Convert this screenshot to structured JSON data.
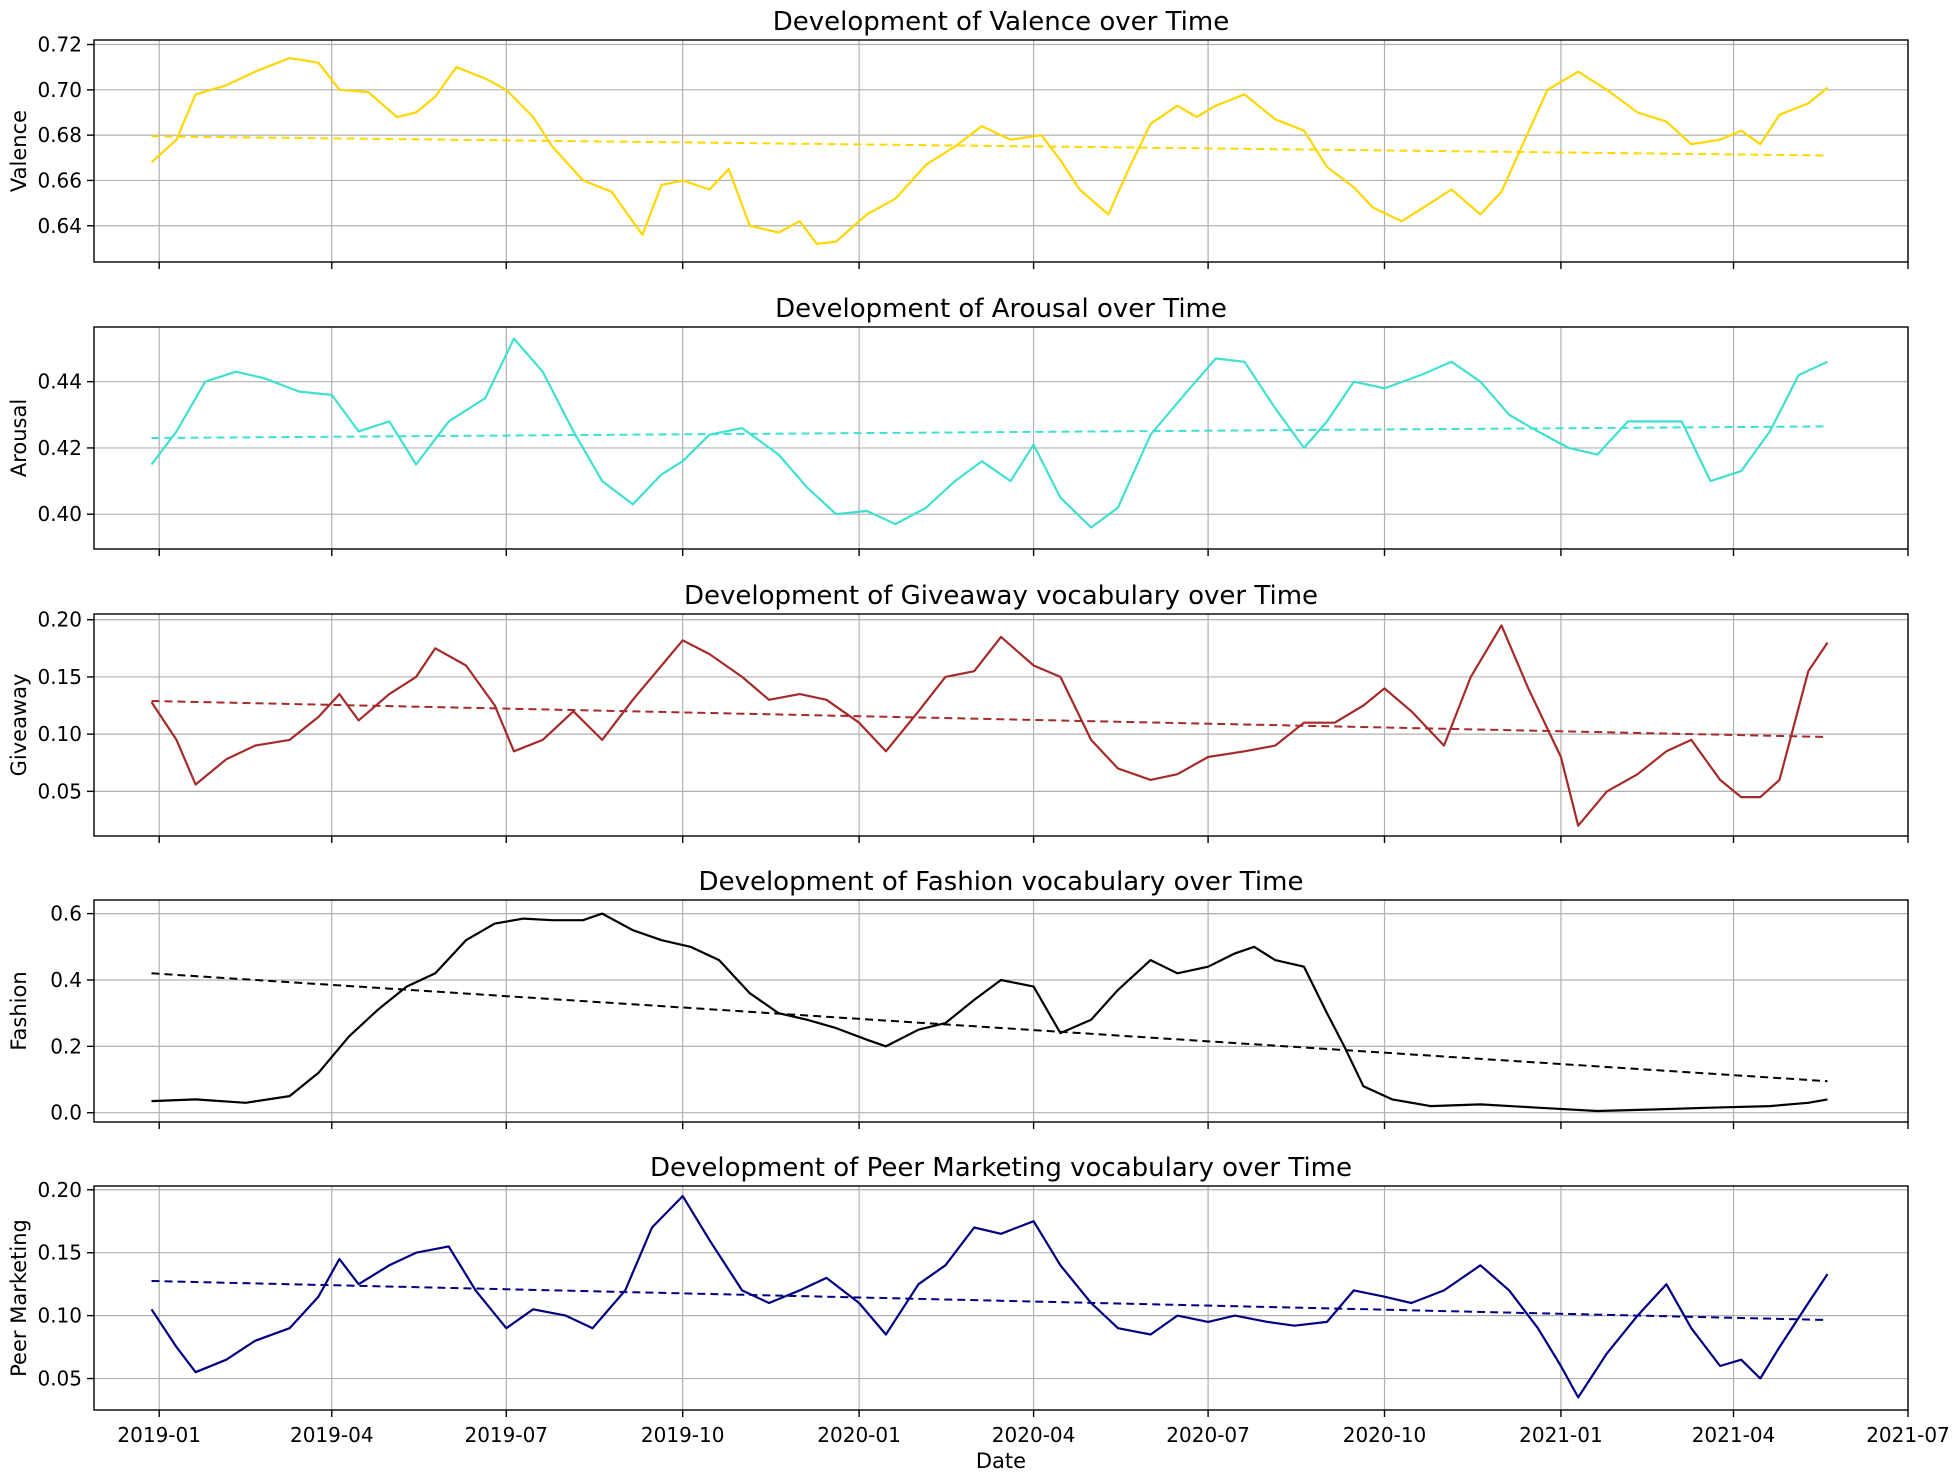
{
  "chart_data": [
    {
      "type": "line",
      "title": "Development of Valence over Time",
      "xlabel": "",
      "ylabel": "Valence",
      "xlim": [
        "2018-11-28",
        "2021-07-01"
      ],
      "ylim": [
        0.624,
        0.722
      ],
      "yticks": [
        0.64,
        0.66,
        0.68,
        0.7,
        0.72
      ],
      "ytick_labels": [
        "0.64",
        "0.66",
        "0.68",
        "0.70",
        "0.72"
      ],
      "xticks": [
        "2019-01-01",
        "2019-04-01",
        "2019-07-01",
        "2019-10-01",
        "2020-01-01",
        "2020-04-01",
        "2020-07-01",
        "2020-10-01",
        "2021-01-01",
        "2021-04-01",
        "2021-07-01"
      ],
      "xtick_labels": [],
      "grid": true,
      "color": "#ffd700",
      "series": [
        {
          "style": "solid",
          "x": [
            "2018-12-28",
            "2019-01-10",
            "2019-01-20",
            "2019-02-05",
            "2019-02-20",
            "2019-03-10",
            "2019-03-25",
            "2019-04-05",
            "2019-04-20",
            "2019-05-05",
            "2019-05-15",
            "2019-05-25",
            "2019-06-05",
            "2019-06-20",
            "2019-07-01",
            "2019-07-15",
            "2019-07-25",
            "2019-08-10",
            "2019-08-25",
            "2019-09-10",
            "2019-09-20",
            "2019-10-01",
            "2019-10-15",
            "2019-10-25",
            "2019-11-05",
            "2019-11-20",
            "2019-12-01",
            "2019-12-10",
            "2019-12-20",
            "2020-01-05",
            "2020-01-20",
            "2020-02-05",
            "2020-02-20",
            "2020-03-05",
            "2020-03-20",
            "2020-04-05",
            "2020-04-15",
            "2020-04-25",
            "2020-05-10",
            "2020-05-20",
            "2020-06-01",
            "2020-06-15",
            "2020-06-25",
            "2020-07-05",
            "2020-07-20",
            "2020-08-05",
            "2020-08-20",
            "2020-09-01",
            "2020-09-15",
            "2020-09-25",
            "2020-10-10",
            "2020-10-25",
            "2020-11-05",
            "2020-11-20",
            "2020-12-01",
            "2020-12-10",
            "2020-12-25",
            "2021-01-10",
            "2021-01-25",
            "2021-02-10",
            "2021-02-25",
            "2021-03-10",
            "2021-03-25",
            "2021-04-05",
            "2021-04-15",
            "2021-04-25",
            "2021-05-10",
            "2021-05-20"
          ],
          "y": [
            0.668,
            0.678,
            0.698,
            0.702,
            0.708,
            0.714,
            0.712,
            0.7,
            0.699,
            0.688,
            0.69,
            0.697,
            0.71,
            0.705,
            0.7,
            0.688,
            0.675,
            0.66,
            0.655,
            0.636,
            0.658,
            0.66,
            0.656,
            0.665,
            0.64,
            0.637,
            0.642,
            0.632,
            0.633,
            0.645,
            0.652,
            0.667,
            0.675,
            0.684,
            0.678,
            0.68,
            0.669,
            0.656,
            0.645,
            0.664,
            0.685,
            0.693,
            0.688,
            0.693,
            0.698,
            0.687,
            0.682,
            0.666,
            0.657,
            0.648,
            0.642,
            0.65,
            0.656,
            0.645,
            0.655,
            0.672,
            0.7,
            0.708,
            0.7,
            0.69,
            0.686,
            0.676,
            0.678,
            0.682,
            0.676,
            0.689,
            0.694,
            0.701
          ]
        },
        {
          "style": "dashed",
          "x": [
            "2018-12-28",
            "2021-05-20"
          ],
          "y": [
            0.6795,
            0.671
          ]
        }
      ]
    },
    {
      "type": "line",
      "title": "Development of Arousal over Time",
      "xlabel": "",
      "ylabel": "Arousal",
      "xlim": [
        "2018-11-28",
        "2021-07-01"
      ],
      "ylim": [
        0.3895,
        0.4565
      ],
      "yticks": [
        0.4,
        0.42,
        0.44
      ],
      "ytick_labels": [
        "0.40",
        "0.42",
        "0.44"
      ],
      "xticks": [
        "2019-01-01",
        "2019-04-01",
        "2019-07-01",
        "2019-10-01",
        "2020-01-01",
        "2020-04-01",
        "2020-07-01",
        "2020-10-01",
        "2021-01-01",
        "2021-04-01",
        "2021-07-01"
      ],
      "xtick_labels": [],
      "grid": true,
      "color": "#40e0d0",
      "series": [
        {
          "style": "solid",
          "x": [
            "2018-12-28",
            "2019-01-10",
            "2019-01-25",
            "2019-02-10",
            "2019-02-25",
            "2019-03-15",
            "2019-04-01",
            "2019-04-15",
            "2019-05-01",
            "2019-05-15",
            "2019-06-01",
            "2019-06-20",
            "2019-07-05",
            "2019-07-20",
            "2019-08-05",
            "2019-08-20",
            "2019-09-05",
            "2019-09-20",
            "2019-10-01",
            "2019-10-15",
            "2019-11-01",
            "2019-11-20",
            "2019-12-05",
            "2019-12-20",
            "2020-01-05",
            "2020-01-20",
            "2020-02-05",
            "2020-02-20",
            "2020-03-05",
            "2020-03-20",
            "2020-04-01",
            "2020-04-15",
            "2020-05-01",
            "2020-05-15",
            "2020-06-01",
            "2020-06-20",
            "2020-07-05",
            "2020-07-20",
            "2020-08-05",
            "2020-08-20",
            "2020-09-01",
            "2020-09-15",
            "2020-10-01",
            "2020-10-20",
            "2020-11-05",
            "2020-11-20",
            "2020-12-05",
            "2020-12-20",
            "2021-01-05",
            "2021-01-20",
            "2021-02-05",
            "2021-02-20",
            "2021-03-05",
            "2021-03-20",
            "2021-04-05",
            "2021-04-20",
            "2021-05-05",
            "2021-05-20"
          ],
          "y": [
            0.415,
            0.425,
            0.44,
            0.443,
            0.441,
            0.437,
            0.436,
            0.425,
            0.428,
            0.415,
            0.428,
            0.435,
            0.453,
            0.443,
            0.425,
            0.41,
            0.403,
            0.412,
            0.416,
            0.424,
            0.426,
            0.418,
            0.408,
            0.4,
            0.401,
            0.397,
            0.402,
            0.41,
            0.416,
            0.41,
            0.421,
            0.405,
            0.396,
            0.402,
            0.424,
            0.437,
            0.447,
            0.446,
            0.432,
            0.42,
            0.428,
            0.44,
            0.438,
            0.442,
            0.446,
            0.44,
            0.43,
            0.425,
            0.42,
            0.418,
            0.428,
            0.428,
            0.428,
            0.41,
            0.413,
            0.425,
            0.442,
            0.446
          ]
        },
        {
          "style": "dashed",
          "x": [
            "2018-12-28",
            "2021-05-20"
          ],
          "y": [
            0.423,
            0.4265
          ]
        }
      ]
    },
    {
      "type": "line",
      "title": "Development of Giveaway vocabulary over Time",
      "xlabel": "",
      "ylabel": "Giveaway",
      "xlim": [
        "2018-11-28",
        "2021-07-01"
      ],
      "ylim": [
        0.011,
        0.205
      ],
      "yticks": [
        0.05,
        0.1,
        0.15,
        0.2
      ],
      "ytick_labels": [
        "0.05",
        "0.10",
        "0.15",
        "0.20"
      ],
      "xticks": [
        "2019-01-01",
        "2019-04-01",
        "2019-07-01",
        "2019-10-01",
        "2020-01-01",
        "2020-04-01",
        "2020-07-01",
        "2020-10-01",
        "2021-01-01",
        "2021-04-01",
        "2021-07-01"
      ],
      "xtick_labels": [],
      "grid": true,
      "color": "#a52a2a",
      "series": [
        {
          "style": "solid",
          "x": [
            "2018-12-28",
            "2019-01-10",
            "2019-01-20",
            "2019-02-05",
            "2019-02-20",
            "2019-03-10",
            "2019-03-25",
            "2019-04-05",
            "2019-04-15",
            "2019-05-01",
            "2019-05-15",
            "2019-05-25",
            "2019-06-10",
            "2019-06-25",
            "2019-07-05",
            "2019-07-20",
            "2019-08-05",
            "2019-08-20",
            "2019-09-05",
            "2019-09-20",
            "2019-10-01",
            "2019-10-15",
            "2019-11-01",
            "2019-11-15",
            "2019-12-01",
            "2019-12-15",
            "2020-01-01",
            "2020-01-15",
            "2020-02-01",
            "2020-02-15",
            "2020-03-01",
            "2020-03-15",
            "2020-04-01",
            "2020-04-15",
            "2020-05-01",
            "2020-05-15",
            "2020-06-01",
            "2020-06-15",
            "2020-07-01",
            "2020-07-20",
            "2020-08-05",
            "2020-08-20",
            "2020-09-05",
            "2020-09-20",
            "2020-10-01",
            "2020-10-15",
            "2020-11-01",
            "2020-11-15",
            "2020-12-01",
            "2020-12-15",
            "2021-01-01",
            "2021-01-10",
            "2021-01-25",
            "2021-02-10",
            "2021-02-25",
            "2021-03-10",
            "2021-03-25",
            "2021-04-05",
            "2021-04-15",
            "2021-04-25",
            "2021-05-10",
            "2021-05-20"
          ],
          "y": [
            0.128,
            0.095,
            0.056,
            0.078,
            0.09,
            0.095,
            0.115,
            0.135,
            0.112,
            0.135,
            0.15,
            0.175,
            0.16,
            0.125,
            0.085,
            0.095,
            0.12,
            0.095,
            0.13,
            0.16,
            0.182,
            0.17,
            0.15,
            0.13,
            0.135,
            0.13,
            0.11,
            0.085,
            0.12,
            0.15,
            0.155,
            0.185,
            0.16,
            0.15,
            0.095,
            0.07,
            0.06,
            0.065,
            0.08,
            0.085,
            0.09,
            0.11,
            0.11,
            0.125,
            0.14,
            0.12,
            0.09,
            0.15,
            0.195,
            0.14,
            0.08,
            0.02,
            0.05,
            0.065,
            0.085,
            0.095,
            0.06,
            0.045,
            0.045,
            0.06,
            0.155,
            0.18
          ]
        },
        {
          "style": "dashed",
          "x": [
            "2018-12-28",
            "2021-05-20"
          ],
          "y": [
            0.129,
            0.0975
          ]
        }
      ]
    },
    {
      "type": "line",
      "title": "Development of Fashion vocabulary over Time",
      "xlabel": "",
      "ylabel": "Fashion",
      "xlim": [
        "2018-11-28",
        "2021-07-01"
      ],
      "ylim": [
        -0.028,
        0.641
      ],
      "yticks": [
        0.0,
        0.2,
        0.4,
        0.6
      ],
      "ytick_labels": [
        "0.0",
        "0.2",
        "0.4",
        "0.6"
      ],
      "xticks": [
        "2019-01-01",
        "2019-04-01",
        "2019-07-01",
        "2019-10-01",
        "2020-01-01",
        "2020-04-01",
        "2020-07-01",
        "2020-10-01",
        "2021-01-01",
        "2021-04-01",
        "2021-07-01"
      ],
      "xtick_labels": [],
      "grid": true,
      "color": "#000000",
      "series": [
        {
          "style": "solid",
          "x": [
            "2018-12-28",
            "2019-01-20",
            "2019-02-15",
            "2019-03-10",
            "2019-03-25",
            "2019-04-10",
            "2019-04-25",
            "2019-05-10",
            "2019-05-25",
            "2019-06-10",
            "2019-06-25",
            "2019-07-10",
            "2019-07-25",
            "2019-08-10",
            "2019-08-20",
            "2019-09-05",
            "2019-09-20",
            "2019-10-05",
            "2019-10-20",
            "2019-11-05",
            "2019-11-20",
            "2019-12-05",
            "2019-12-20",
            "2020-01-05",
            "2020-01-15",
            "2020-02-01",
            "2020-02-15",
            "2020-03-01",
            "2020-03-15",
            "2020-04-01",
            "2020-04-15",
            "2020-05-01",
            "2020-05-15",
            "2020-06-01",
            "2020-06-15",
            "2020-07-01",
            "2020-07-15",
            "2020-07-25",
            "2020-08-05",
            "2020-08-20",
            "2020-09-01",
            "2020-09-10",
            "2020-09-20",
            "2020-10-05",
            "2020-10-25",
            "2020-11-20",
            "2020-12-20",
            "2021-01-20",
            "2021-02-20",
            "2021-03-20",
            "2021-04-20",
            "2021-05-10",
            "2021-05-20"
          ],
          "y": [
            0.035,
            0.04,
            0.03,
            0.05,
            0.12,
            0.23,
            0.31,
            0.38,
            0.42,
            0.52,
            0.57,
            0.585,
            0.58,
            0.58,
            0.6,
            0.55,
            0.52,
            0.5,
            0.46,
            0.36,
            0.3,
            0.28,
            0.255,
            0.22,
            0.2,
            0.25,
            0.27,
            0.34,
            0.4,
            0.38,
            0.24,
            0.28,
            0.37,
            0.46,
            0.42,
            0.44,
            0.48,
            0.5,
            0.46,
            0.44,
            0.3,
            0.2,
            0.08,
            0.04,
            0.02,
            0.025,
            0.015,
            0.005,
            0.01,
            0.015,
            0.02,
            0.03,
            0.04
          ]
        },
        {
          "style": "dashed",
          "x": [
            "2018-12-28",
            "2021-05-20"
          ],
          "y": [
            0.42,
            0.095
          ]
        }
      ]
    },
    {
      "type": "line",
      "title": "Development of Peer Marketing vocabulary over Time",
      "xlabel": "Date",
      "ylabel": "Peer Marketing",
      "xlim": [
        "2018-11-28",
        "2021-07-01"
      ],
      "ylim": [
        0.025,
        0.203
      ],
      "yticks": [
        0.05,
        0.1,
        0.15,
        0.2
      ],
      "ytick_labels": [
        "0.05",
        "0.10",
        "0.15",
        "0.20"
      ],
      "xticks": [
        "2019-01-01",
        "2019-04-01",
        "2019-07-01",
        "2019-10-01",
        "2020-01-01",
        "2020-04-01",
        "2020-07-01",
        "2020-10-01",
        "2021-01-01",
        "2021-04-01",
        "2021-07-01"
      ],
      "xtick_labels": [
        "2019-01",
        "2019-04",
        "2019-07",
        "2019-10",
        "2020-01",
        "2020-04",
        "2020-07",
        "2020-10",
        "2021-01",
        "2021-04",
        "2021-07"
      ],
      "grid": true,
      "color": "#000080",
      "series": [
        {
          "style": "solid",
          "x": [
            "2018-12-28",
            "2019-01-10",
            "2019-01-20",
            "2019-02-05",
            "2019-02-20",
            "2019-03-10",
            "2019-03-25",
            "2019-04-05",
            "2019-04-15",
            "2019-05-01",
            "2019-05-15",
            "2019-06-01",
            "2019-06-15",
            "2019-07-01",
            "2019-07-15",
            "2019-08-01",
            "2019-08-15",
            "2019-09-01",
            "2019-09-15",
            "2019-10-01",
            "2019-10-15",
            "2019-11-01",
            "2019-11-15",
            "2019-12-01",
            "2019-12-15",
            "2020-01-01",
            "2020-01-15",
            "2020-02-01",
            "2020-02-15",
            "2020-03-01",
            "2020-03-15",
            "2020-04-01",
            "2020-04-15",
            "2020-05-01",
            "2020-05-15",
            "2020-06-01",
            "2020-06-15",
            "2020-07-01",
            "2020-07-15",
            "2020-08-01",
            "2020-08-15",
            "2020-09-01",
            "2020-09-15",
            "2020-10-01",
            "2020-10-15",
            "2020-11-01",
            "2020-11-20",
            "2020-12-05",
            "2020-12-20",
            "2021-01-01",
            "2021-01-10",
            "2021-01-25",
            "2021-02-10",
            "2021-02-25",
            "2021-03-10",
            "2021-03-25",
            "2021-04-05",
            "2021-04-15",
            "2021-04-25",
            "2021-05-10",
            "2021-05-20"
          ],
          "y": [
            0.105,
            0.075,
            0.055,
            0.065,
            0.08,
            0.09,
            0.115,
            0.145,
            0.125,
            0.14,
            0.15,
            0.155,
            0.12,
            0.09,
            0.105,
            0.1,
            0.09,
            0.12,
            0.17,
            0.195,
            0.16,
            0.12,
            0.11,
            0.12,
            0.13,
            0.11,
            0.085,
            0.125,
            0.14,
            0.17,
            0.165,
            0.175,
            0.14,
            0.11,
            0.09,
            0.085,
            0.1,
            0.095,
            0.1,
            0.095,
            0.092,
            0.095,
            0.12,
            0.115,
            0.11,
            0.12,
            0.14,
            0.12,
            0.09,
            0.06,
            0.035,
            0.07,
            0.1,
            0.125,
            0.09,
            0.06,
            0.065,
            0.05,
            0.075,
            0.11,
            0.133
          ]
        },
        {
          "style": "dashed",
          "x": [
            "2018-12-28",
            "2021-05-20"
          ],
          "y": [
            0.1275,
            0.0965
          ]
        }
      ]
    }
  ]
}
